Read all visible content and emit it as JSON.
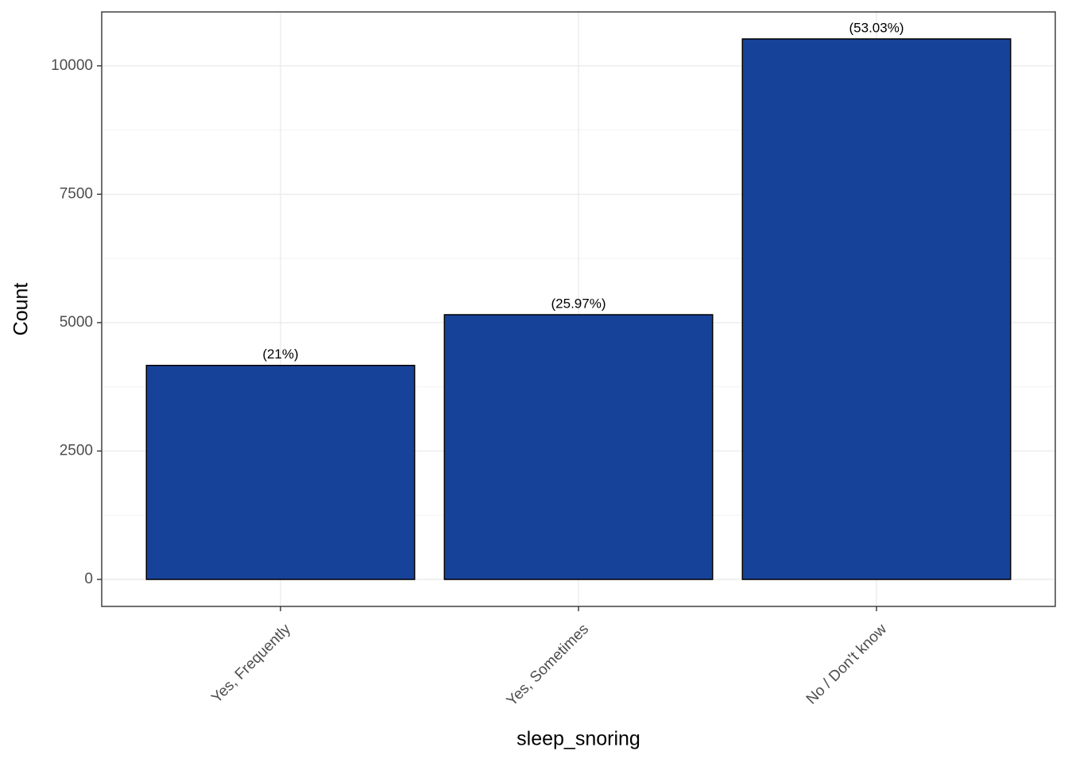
{
  "chart_data": {
    "type": "bar",
    "x_label": "sleep_snoring",
    "y_label": "Count",
    "categories": [
      "Yes, Frequently",
      "Yes, Sometimes",
      "No / Don't know"
    ],
    "values": [
      4167,
      5154,
      10524
    ],
    "annotations": [
      "(21%)",
      "(25.97%)",
      "(53.03%)"
    ],
    "color": "#17429a",
    "ylim": [
      -526,
      11050
    ],
    "yticks": [
      0,
      2500,
      5000,
      7500,
      10000
    ],
    "grid": true
  }
}
